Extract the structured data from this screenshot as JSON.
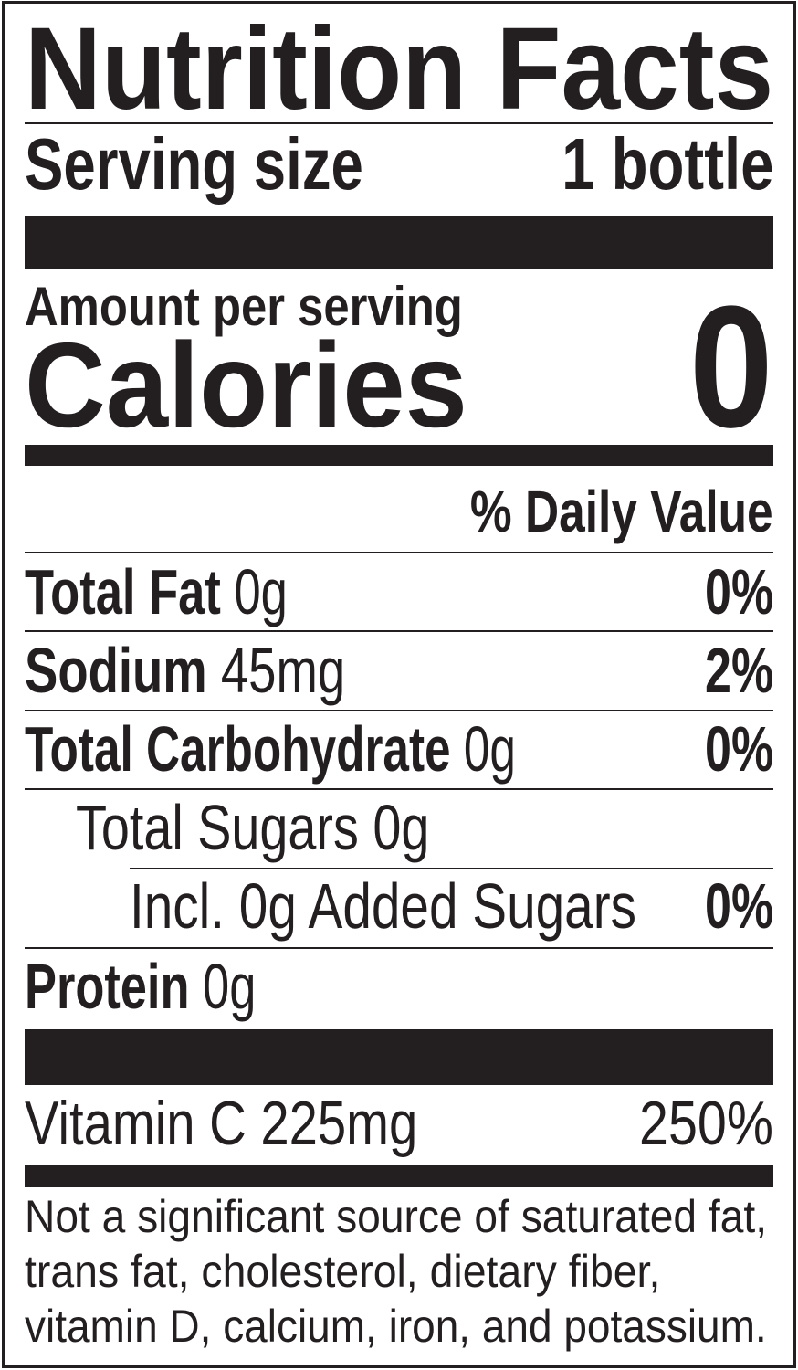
{
  "title": "Nutrition Facts",
  "serving": {
    "label": "Serving size",
    "value": "1 bottle"
  },
  "amount_per_serving": "Amount per serving",
  "calories": {
    "label": "Calories",
    "value": "0"
  },
  "daily_value_header": "% Daily Value",
  "nutrients": [
    {
      "name": "Total Fat",
      "amount": "0g",
      "dv": "0%"
    },
    {
      "name": "Sodium",
      "amount": "45mg",
      "dv": "2%"
    },
    {
      "name": "Total Carbohydrate",
      "amount": "0g",
      "dv": "0%"
    },
    {
      "name": "Total Sugars 0g"
    },
    {
      "name": "Incl. 0g Added Sugars",
      "dv": "0%"
    },
    {
      "name": "Protein",
      "amount": "0g"
    }
  ],
  "vitamins": [
    {
      "name": "Vitamin C 225mg",
      "dv": "250%"
    }
  ],
  "footnote": [
    "Not a significant source of saturated fat,",
    "trans fat, cholesterol, dietary fiber,",
    "vitamin D, calcium, iron, and potassium."
  ]
}
